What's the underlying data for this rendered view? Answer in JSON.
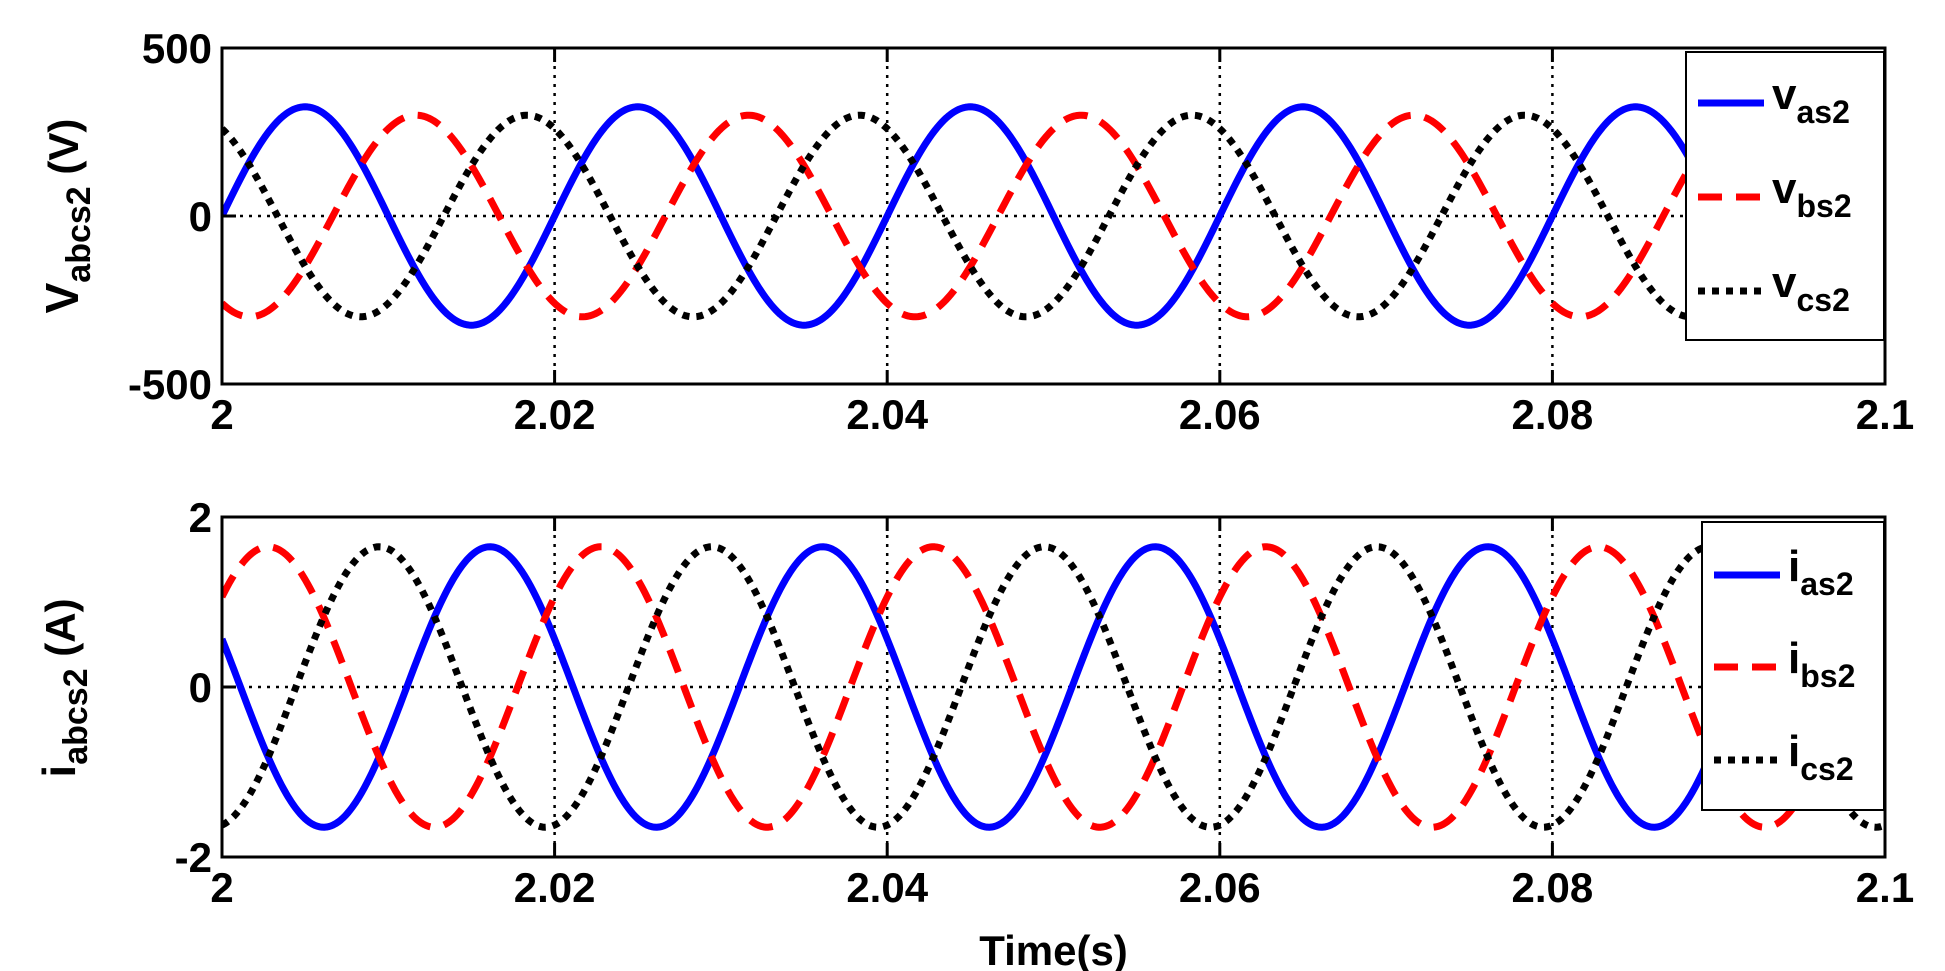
{
  "chart_data": [
    {
      "type": "line",
      "xlabel": "",
      "ylabel": {
        "main": "V",
        "sub": "abcs2",
        "unit": "(V)"
      },
      "xlim": [
        2,
        2.1
      ],
      "ylim": [
        -500,
        500
      ],
      "xticks": [
        "2",
        "2.02",
        "2.04",
        "2.06",
        "2.08",
        "2.1"
      ],
      "yticks": [
        "500",
        "0",
        "-500"
      ],
      "grid": true,
      "legend_position": "top-right",
      "signal": {
        "frequency_hz": 50,
        "t_start": 2,
        "t_end": 2.1
      },
      "series": [
        {
          "name": {
            "main": "v",
            "sub": "as2"
          },
          "color": "#0000ff",
          "style": "solid",
          "amplitude": 325,
          "phase_deg": 0,
          "offset": 0
        },
        {
          "name": {
            "main": "v",
            "sub": "bs2"
          },
          "color": "#ff0000",
          "style": "dashed",
          "amplitude": 300,
          "phase_deg": -120,
          "offset": 0
        },
        {
          "name": {
            "main": "v",
            "sub": "cs2"
          },
          "color": "#000000",
          "style": "dotted",
          "amplitude": 300,
          "phase_deg": 120,
          "offset": 0
        }
      ]
    },
    {
      "type": "line",
      "xlabel": "Time(s)",
      "ylabel": {
        "main": "i",
        "sub": "abcs2",
        "unit": "(A)"
      },
      "xlim": [
        2,
        2.1
      ],
      "ylim": [
        -2,
        2
      ],
      "xticks": [
        "2",
        "2.02",
        "2.04",
        "2.06",
        "2.08",
        "2.1"
      ],
      "yticks": [
        "2",
        "0",
        "-2"
      ],
      "grid": true,
      "legend_position": "top-right",
      "signal": {
        "frequency_hz": 50,
        "t_start": 2,
        "t_end": 2.1
      },
      "series": [
        {
          "name": {
            "main": "i",
            "sub": "as2"
          },
          "color": "#0000ff",
          "style": "solid",
          "amplitude": 1.65,
          "phase_deg": 160,
          "offset": 0
        },
        {
          "name": {
            "main": "i",
            "sub": "bs2"
          },
          "color": "#ff0000",
          "style": "dashed",
          "amplitude": 1.65,
          "phase_deg": 40,
          "offset": 0
        },
        {
          "name": {
            "main": "i",
            "sub": "cs2"
          },
          "color": "#000000",
          "style": "dotted",
          "amplitude": 1.65,
          "phase_deg": -80,
          "offset": 0
        }
      ]
    }
  ]
}
